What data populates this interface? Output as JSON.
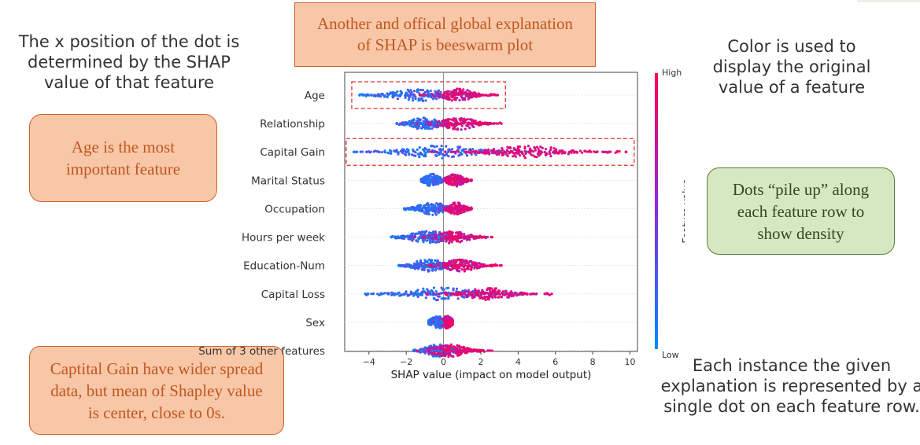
{
  "slide": {
    "title_box": "Another and offical global explanation\nof SHAP is beeswarm plot",
    "note_xpos": "The x position of the dot is\ndetermined by the SHAP\nvalue of that feature",
    "note_age": "Age is the most\nimportant feature",
    "note_capgain": "Captital Gain have wider spread\ndata, but mean of Shapley value\nis center, close to 0s.",
    "note_color": "Color is used to\ndisplay the original\nvalue of a feature",
    "note_pileup": "Dots “pile up” along\neach feature row to\nshow density",
    "note_instance": "Each instance the given\nexplanation is represented by a\nsingle dot on each feature row."
  },
  "colors": {
    "low": "#008bfb",
    "high": "#ff0052",
    "mid": "#8a2be2",
    "highlight_box": "#e0302a"
  },
  "chart_data": {
    "type": "scatter",
    "subtype": "beeswarm",
    "xlabel": "SHAP value (impact on model output)",
    "xlim": [
      -5.3,
      10.4
    ],
    "xticks": [
      -4,
      -2,
      0,
      2,
      4,
      6,
      8,
      10
    ],
    "xtick_labels": [
      "−4",
      "−2",
      "0",
      "2",
      "4",
      "6",
      "8",
      "10"
    ],
    "colorbar": {
      "label": "Feature value",
      "high": "High",
      "low": "Low"
    },
    "features": [
      {
        "name": "Age",
        "min": -4.5,
        "max": 2.9,
        "low_mean": -1.2,
        "high_mean": 0.8,
        "highlighted": true
      },
      {
        "name": "Relationship",
        "min": -2.5,
        "max": 3.1,
        "low_mean": -1.0,
        "high_mean": 0.8,
        "highlighted": false
      },
      {
        "name": "Capital Gain",
        "min": -4.8,
        "max": 9.8,
        "low_mean": -0.2,
        "high_mean": 4.5,
        "highlighted": true
      },
      {
        "name": "Marital Status",
        "min": -1.2,
        "max": 1.5,
        "low_mean": -0.6,
        "high_mean": 0.6,
        "highlighted": false
      },
      {
        "name": "Occupation",
        "min": -2.1,
        "max": 1.5,
        "low_mean": -0.6,
        "high_mean": 0.7,
        "highlighted": false
      },
      {
        "name": "Hours per week",
        "min": -2.8,
        "max": 2.6,
        "low_mean": -0.8,
        "high_mean": 0.5,
        "highlighted": false
      },
      {
        "name": "Education-Num",
        "min": -2.4,
        "max": 3.1,
        "low_mean": -0.8,
        "high_mean": 0.9,
        "highlighted": false
      },
      {
        "name": "Capital Loss",
        "min": -4.2,
        "max": 5.8,
        "low_mean": -0.2,
        "high_mean": 2.5,
        "highlighted": false
      },
      {
        "name": "Sex",
        "min": -0.8,
        "max": 0.5,
        "low_mean": -0.3,
        "high_mean": 0.2,
        "highlighted": false
      },
      {
        "name": "Sum of 3 other features",
        "min": -1.6,
        "max": 2.6,
        "low_mean": -0.3,
        "high_mean": 0.3,
        "highlighted": false
      }
    ]
  }
}
